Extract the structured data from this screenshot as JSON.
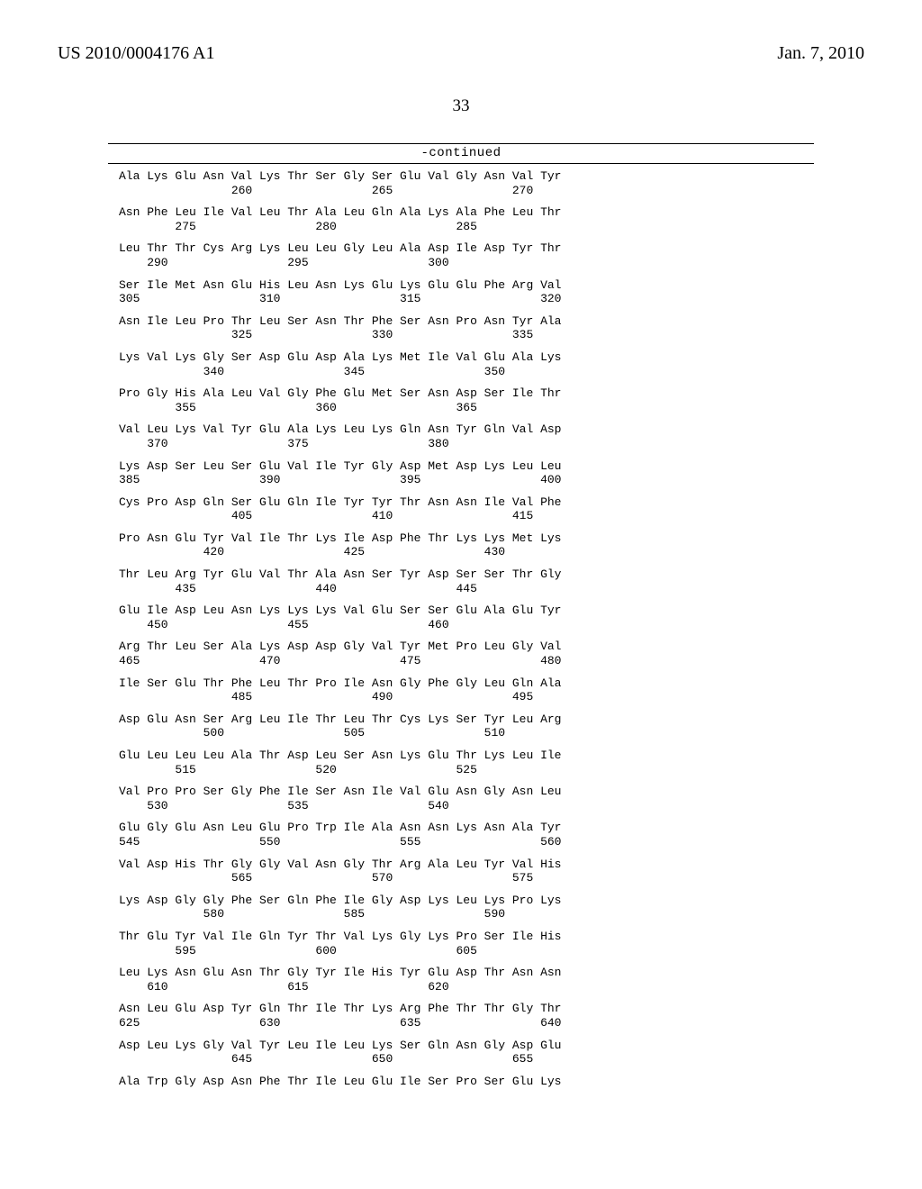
{
  "header": {
    "left": "US 2010/0004176 A1",
    "right": "Jan. 7, 2010"
  },
  "page_number": "33",
  "continued_label": "-continued",
  "blocks": [
    {
      "aa": "Ala Lys Glu Asn Val Lys Thr Ser Gly Ser Glu Val Gly Asn Val Tyr",
      "nums": "                260                 265                 270"
    },
    {
      "aa": "Asn Phe Leu Ile Val Leu Thr Ala Leu Gln Ala Lys Ala Phe Leu Thr",
      "nums": "        275                 280                 285"
    },
    {
      "aa": "Leu Thr Thr Cys Arg Lys Leu Leu Gly Leu Ala Asp Ile Asp Tyr Thr",
      "nums": "    290                 295                 300"
    },
    {
      "aa": "Ser Ile Met Asn Glu His Leu Asn Lys Glu Lys Glu Glu Phe Arg Val",
      "nums": "305                 310                 315                 320"
    },
    {
      "aa": "Asn Ile Leu Pro Thr Leu Ser Asn Thr Phe Ser Asn Pro Asn Tyr Ala",
      "nums": "                325                 330                 335"
    },
    {
      "aa": "Lys Val Lys Gly Ser Asp Glu Asp Ala Lys Met Ile Val Glu Ala Lys",
      "nums": "            340                 345                 350"
    },
    {
      "aa": "Pro Gly His Ala Leu Val Gly Phe Glu Met Ser Asn Asp Ser Ile Thr",
      "nums": "        355                 360                 365"
    },
    {
      "aa": "Val Leu Lys Val Tyr Glu Ala Lys Leu Lys Gln Asn Tyr Gln Val Asp",
      "nums": "    370                 375                 380"
    },
    {
      "aa": "Lys Asp Ser Leu Ser Glu Val Ile Tyr Gly Asp Met Asp Lys Leu Leu",
      "nums": "385                 390                 395                 400"
    },
    {
      "aa": "Cys Pro Asp Gln Ser Glu Gln Ile Tyr Tyr Thr Asn Asn Ile Val Phe",
      "nums": "                405                 410                 415"
    },
    {
      "aa": "Pro Asn Glu Tyr Val Ile Thr Lys Ile Asp Phe Thr Lys Lys Met Lys",
      "nums": "            420                 425                 430"
    },
    {
      "aa": "Thr Leu Arg Tyr Glu Val Thr Ala Asn Ser Tyr Asp Ser Ser Thr Gly",
      "nums": "        435                 440                 445"
    },
    {
      "aa": "Glu Ile Asp Leu Asn Lys Lys Lys Val Glu Ser Ser Glu Ala Glu Tyr",
      "nums": "    450                 455                 460"
    },
    {
      "aa": "Arg Thr Leu Ser Ala Lys Asp Asp Gly Val Tyr Met Pro Leu Gly Val",
      "nums": "465                 470                 475                 480"
    },
    {
      "aa": "Ile Ser Glu Thr Phe Leu Thr Pro Ile Asn Gly Phe Gly Leu Gln Ala",
      "nums": "                485                 490                 495"
    },
    {
      "aa": "Asp Glu Asn Ser Arg Leu Ile Thr Leu Thr Cys Lys Ser Tyr Leu Arg",
      "nums": "            500                 505                 510"
    },
    {
      "aa": "Glu Leu Leu Leu Ala Thr Asp Leu Ser Asn Lys Glu Thr Lys Leu Ile",
      "nums": "        515                 520                 525"
    },
    {
      "aa": "Val Pro Pro Ser Gly Phe Ile Ser Asn Ile Val Glu Asn Gly Asn Leu",
      "nums": "    530                 535                 540"
    },
    {
      "aa": "Glu Gly Glu Asn Leu Glu Pro Trp Ile Ala Asn Asn Lys Asn Ala Tyr",
      "nums": "545                 550                 555                 560"
    },
    {
      "aa": "Val Asp His Thr Gly Gly Val Asn Gly Thr Arg Ala Leu Tyr Val His",
      "nums": "                565                 570                 575"
    },
    {
      "aa": "Lys Asp Gly Gly Phe Ser Gln Phe Ile Gly Asp Lys Leu Lys Pro Lys",
      "nums": "            580                 585                 590"
    },
    {
      "aa": "Thr Glu Tyr Val Ile Gln Tyr Thr Val Lys Gly Lys Pro Ser Ile His",
      "nums": "        595                 600                 605"
    },
    {
      "aa": "Leu Lys Asn Glu Asn Thr Gly Tyr Ile His Tyr Glu Asp Thr Asn Asn",
      "nums": "    610                 615                 620"
    },
    {
      "aa": "Asn Leu Glu Asp Tyr Gln Thr Ile Thr Lys Arg Phe Thr Thr Gly Thr",
      "nums": "625                 630                 635                 640"
    },
    {
      "aa": "Asp Leu Lys Gly Val Tyr Leu Ile Leu Lys Ser Gln Asn Gly Asp Glu",
      "nums": "                645                 650                 655"
    },
    {
      "aa": "Ala Trp Gly Asp Asn Phe Thr Ile Leu Glu Ile Ser Pro Ser Glu Lys",
      "nums": ""
    }
  ]
}
